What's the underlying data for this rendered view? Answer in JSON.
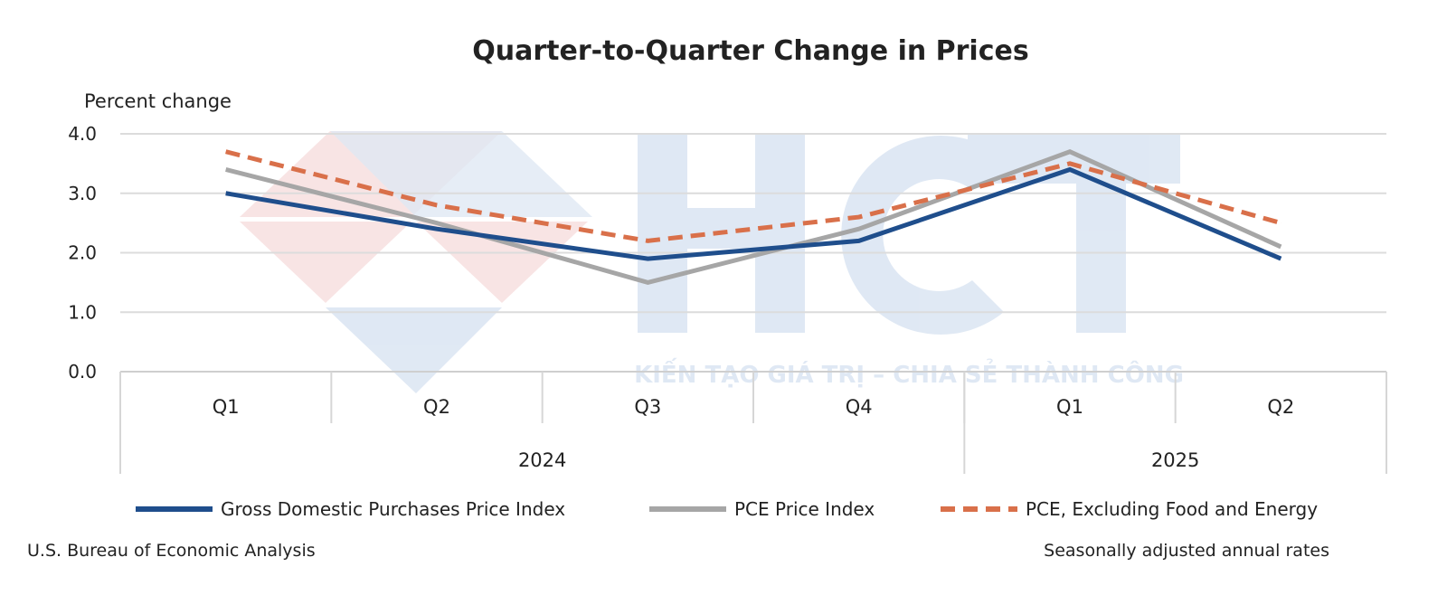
{
  "chart_data": {
    "type": "line",
    "title": "Quarter-to-Quarter Change in Prices",
    "ylabel": "Percent change",
    "xlabel": "",
    "ylim": [
      0,
      4
    ],
    "yticks": [
      "0.0",
      "1.0",
      "2.0",
      "3.0",
      "4.0"
    ],
    "ytick_values": [
      0,
      1,
      2,
      3,
      4
    ],
    "grid": true,
    "categories": [
      "Q1",
      "Q2",
      "Q3",
      "Q4",
      "Q1",
      "Q2"
    ],
    "years": [
      {
        "label": "2024",
        "span": 4
      },
      {
        "label": "2025",
        "span": 2
      }
    ],
    "legend_position": "bottom",
    "series": [
      {
        "name": "Gross Domestic Purchases Price Index",
        "color": "#1f4e8c",
        "style": "solid",
        "values": [
          3.0,
          2.4,
          1.9,
          2.2,
          3.4,
          1.9
        ]
      },
      {
        "name": "PCE Price Index",
        "color": "#a6a6a6",
        "style": "solid",
        "values": [
          3.4,
          2.5,
          1.5,
          2.4,
          3.7,
          2.1
        ]
      },
      {
        "name": "PCE, Excluding Food and Energy",
        "color": "#d9704a",
        "style": "dashed",
        "values": [
          3.7,
          2.8,
          2.2,
          2.6,
          3.5,
          2.5
        ]
      }
    ],
    "source": "U.S. Bureau of Economic Analysis",
    "note": "Seasonally adjusted annual rates"
  },
  "watermark": {
    "logo": "HCT",
    "tagline": "KIẾN TẠO GIÁ TRỊ – CHIA SẺ THÀNH CÔNG"
  }
}
